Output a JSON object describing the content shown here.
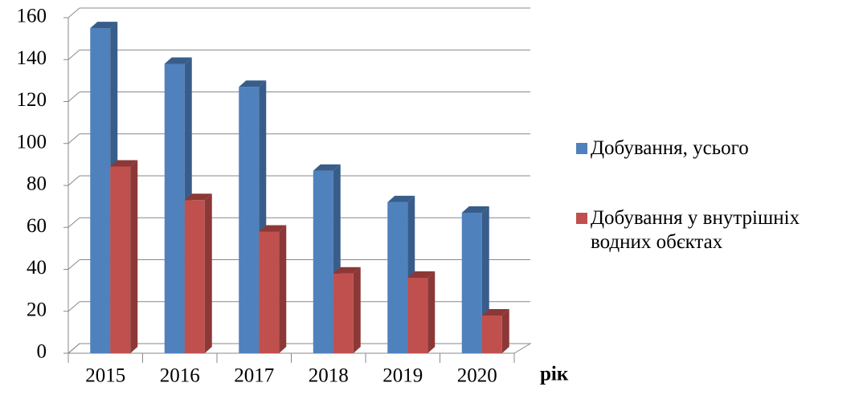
{
  "chart_data": {
    "type": "bar3d",
    "categories": [
      "2015",
      "2016",
      "2017",
      "2018",
      "2019",
      "2020"
    ],
    "series": [
      {
        "name": "Добування, усього",
        "color": "#4f81bd",
        "values": [
          155,
          138,
          127,
          87,
          72,
          67
        ]
      },
      {
        "name": "Добування у внутрішніх водних обєктах",
        "color": "#c0504d",
        "values": [
          89,
          73,
          58,
          38,
          36,
          18
        ]
      }
    ],
    "x_label": "рік",
    "ylim": [
      0,
      160
    ],
    "yticks": [
      0,
      20,
      40,
      60,
      80,
      100,
      120,
      140,
      160
    ],
    "grid": true,
    "legend": "right"
  }
}
